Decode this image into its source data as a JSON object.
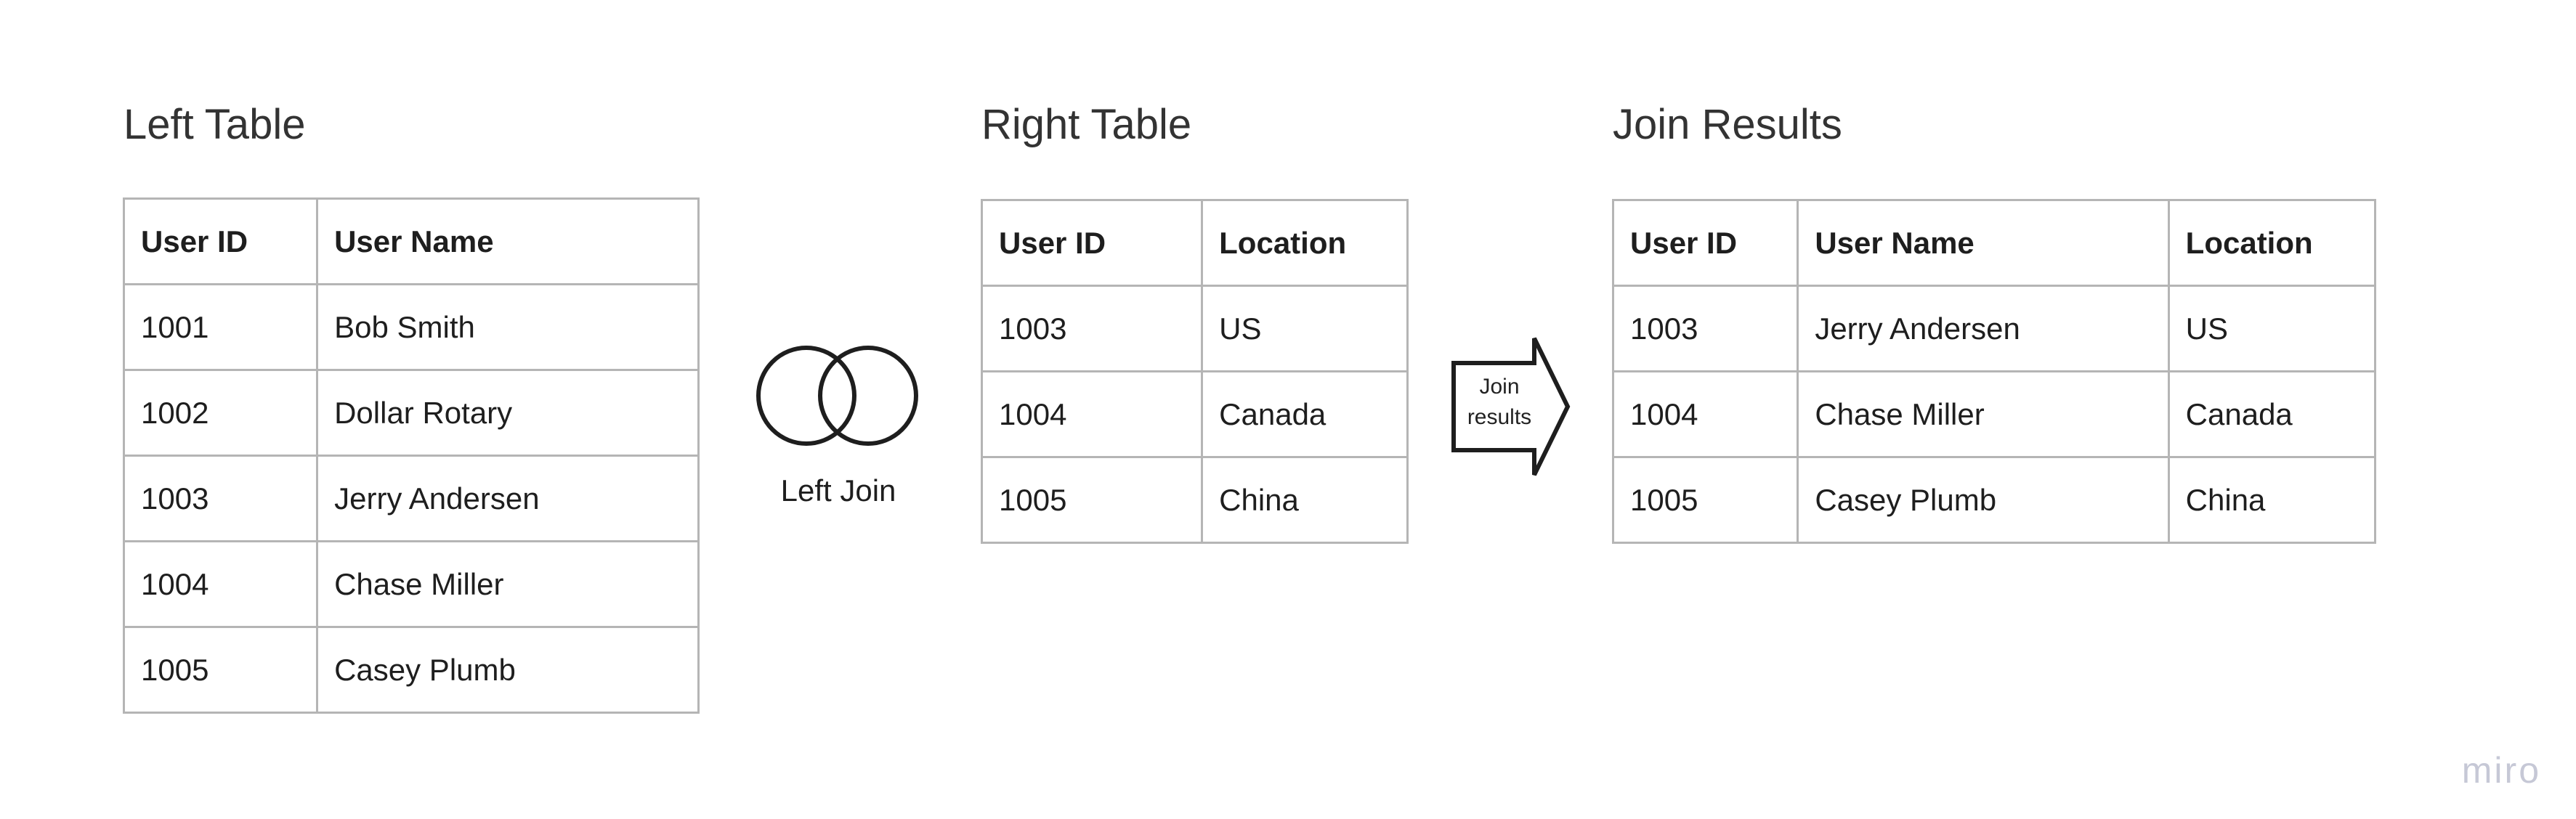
{
  "left_table": {
    "title": "Left Table",
    "columns": [
      "User ID",
      "User Name"
    ],
    "rows": [
      [
        "1001",
        "Bob Smith"
      ],
      [
        "1002",
        "Dollar Rotary"
      ],
      [
        "1003",
        "Jerry Andersen"
      ],
      [
        "1004",
        "Chase Miller"
      ],
      [
        "1005",
        "Casey Plumb"
      ]
    ]
  },
  "venn": {
    "label": "Left Join"
  },
  "right_table": {
    "title": "Right Table",
    "columns": [
      "User ID",
      "Location"
    ],
    "rows": [
      [
        "1003",
        "US"
      ],
      [
        "1004",
        "Canada"
      ],
      [
        "1005",
        "China"
      ]
    ]
  },
  "arrow": {
    "label_line1": "Join",
    "label_line2": "results"
  },
  "result_table": {
    "title": "Join Results",
    "columns": [
      "User ID",
      "User Name",
      "Location"
    ],
    "rows": [
      [
        "1003",
        "Jerry Andersen",
        "US"
      ],
      [
        "1004",
        "Chase Miller",
        "Canada"
      ],
      [
        "1005",
        "Casey Plumb",
        "China"
      ]
    ]
  },
  "watermark": "miro",
  "colors": {
    "grid_border": "#b5b5b5",
    "text": "#1e1e1e",
    "watermark": "#c6c8d6"
  }
}
